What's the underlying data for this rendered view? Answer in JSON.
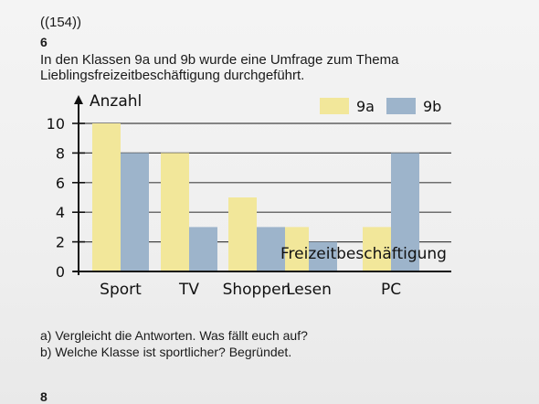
{
  "header": {
    "code": "((154))"
  },
  "task": {
    "number": "6",
    "intro_line1": "In den Klassen 9a und 9b wurde eine Umfrage zum Thema",
    "intro_line2": "Lieblingsfreizeitbeschäftigung durchgeführt."
  },
  "chart_data": {
    "type": "bar",
    "categories": [
      "Sport",
      "TV",
      "Shoppen",
      "Lesen",
      "PC"
    ],
    "series": [
      {
        "name": "9a",
        "values": [
          10,
          8,
          5,
          3,
          3
        ],
        "color": "#f2e79a"
      },
      {
        "name": "9b",
        "values": [
          8,
          3,
          3,
          2,
          8
        ],
        "color": "#9db4cb"
      }
    ],
    "ylabel": "Anzahl",
    "xlabel": "Freizeitbeschäftigung",
    "yticks": [
      0,
      2,
      4,
      6,
      8,
      10
    ],
    "ylim": [
      0,
      10
    ],
    "grid": true,
    "legend": "top-right"
  },
  "questions": {
    "a": "a) Vergleicht die Antworten. Was fällt euch auf?",
    "b": "b) Welche Klasse ist sportlicher? Begründet."
  },
  "footer": {
    "page": "8"
  }
}
